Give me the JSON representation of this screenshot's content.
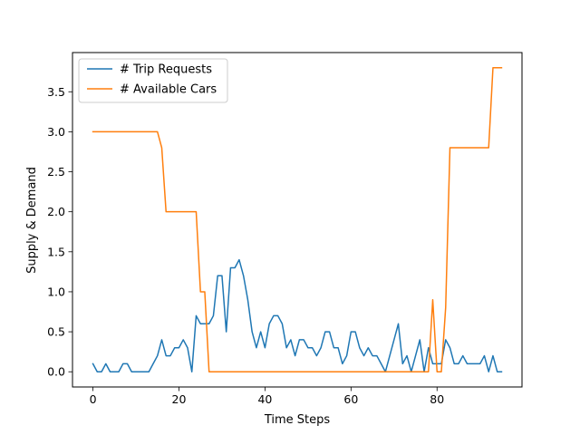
{
  "chart_data": {
    "type": "line",
    "title": "",
    "xlabel": "Time Steps",
    "ylabel": "Supply & Demand",
    "xlim": [
      -4.75,
      99.75
    ],
    "ylim": [
      -0.19,
      3.99
    ],
    "xticks": [
      0,
      20,
      40,
      60,
      80
    ],
    "yticks": [
      0.0,
      0.5,
      1.0,
      1.5,
      2.0,
      2.5,
      3.0,
      3.5
    ],
    "ytick_labels": [
      "0.0",
      "0.5",
      "1.0",
      "1.5",
      "2.0",
      "2.5",
      "3.0",
      "3.5"
    ],
    "grid": false,
    "legend_position": "upper-left",
    "series": [
      {
        "name": "# Trip Requests",
        "color": "#1f77b4",
        "x": [
          0,
          1,
          2,
          3,
          4,
          5,
          6,
          7,
          8,
          9,
          10,
          11,
          12,
          13,
          14,
          15,
          16,
          17,
          18,
          19,
          20,
          21,
          22,
          23,
          24,
          25,
          26,
          27,
          28,
          29,
          30,
          31,
          32,
          33,
          34,
          35,
          36,
          37,
          38,
          39,
          40,
          41,
          42,
          43,
          44,
          45,
          46,
          47,
          48,
          49,
          50,
          51,
          52,
          53,
          54,
          55,
          56,
          57,
          58,
          59,
          60,
          61,
          62,
          63,
          64,
          65,
          66,
          67,
          68,
          69,
          70,
          71,
          72,
          73,
          74,
          75,
          76,
          77,
          78,
          79,
          80,
          81,
          82,
          83,
          84,
          85,
          86,
          87,
          88,
          89,
          90,
          91,
          92,
          93,
          94,
          95
        ],
        "values": [
          0.1,
          0.0,
          0.0,
          0.1,
          0.0,
          0.0,
          0.0,
          0.1,
          0.1,
          0.0,
          0.0,
          0.0,
          0.0,
          0.0,
          0.1,
          0.2,
          0.4,
          0.2,
          0.2,
          0.3,
          0.3,
          0.4,
          0.3,
          0.0,
          0.7,
          0.6,
          0.6,
          0.6,
          0.7,
          1.2,
          1.2,
          0.5,
          1.3,
          1.3,
          1.4,
          1.2,
          0.9,
          0.5,
          0.3,
          0.5,
          0.3,
          0.6,
          0.7,
          0.7,
          0.6,
          0.3,
          0.4,
          0.2,
          0.4,
          0.4,
          0.3,
          0.3,
          0.2,
          0.3,
          0.5,
          0.5,
          0.3,
          0.3,
          0.1,
          0.2,
          0.5,
          0.5,
          0.3,
          0.2,
          0.3,
          0.2,
          0.2,
          0.1,
          0.0,
          0.2,
          0.4,
          0.6,
          0.1,
          0.2,
          0.0,
          0.2,
          0.4,
          0.0,
          0.3,
          0.1,
          0.1,
          0.1,
          0.4,
          0.3,
          0.1,
          0.1,
          0.2,
          0.1,
          0.1,
          0.1,
          0.1,
          0.2,
          0.0,
          0.2,
          0.0,
          0.0
        ]
      },
      {
        "name": "# Available Cars",
        "color": "#ff7f0e",
        "x": [
          0,
          15,
          16,
          17,
          24,
          25,
          26,
          27,
          78,
          79,
          80,
          81,
          82,
          83,
          92,
          93,
          95
        ],
        "values": [
          3.0,
          3.0,
          2.8,
          2.0,
          2.0,
          1.0,
          1.0,
          0.0,
          0.0,
          0.9,
          0.0,
          0.0,
          0.8,
          2.8,
          2.8,
          3.8,
          3.8
        ]
      }
    ]
  }
}
